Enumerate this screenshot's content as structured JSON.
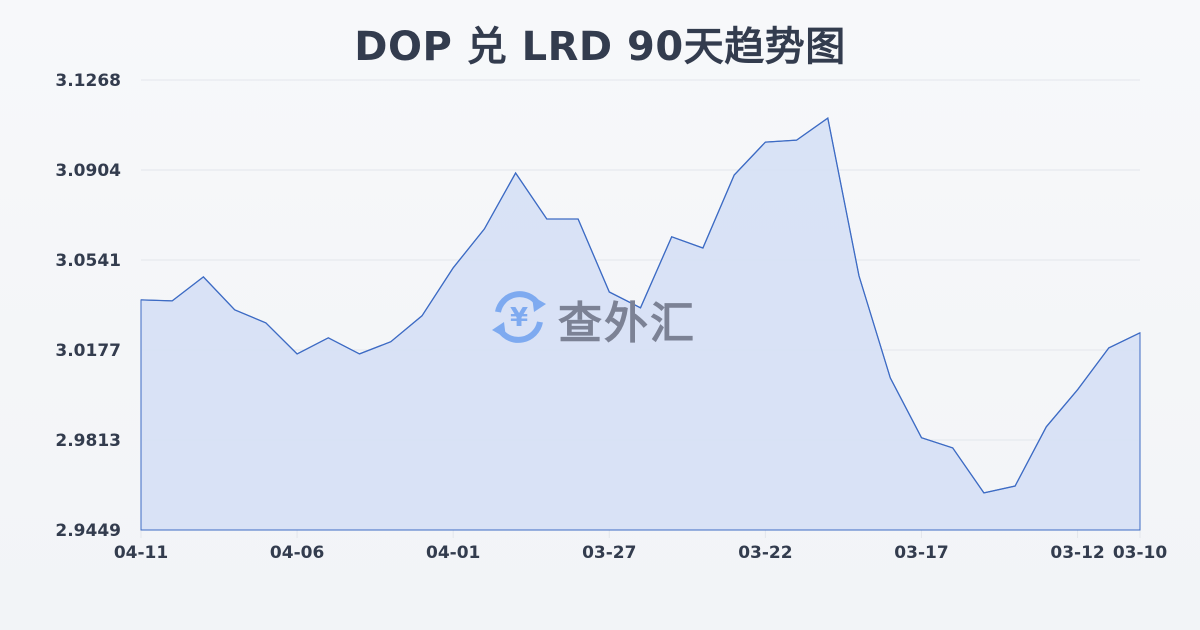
{
  "title": "DOP 兑 LRD 90天趋势图",
  "watermark": {
    "text": "查外汇",
    "icon": "yen-exchange-icon"
  },
  "colors": {
    "line": "#3d6bc4",
    "fill": "#d6e0f5",
    "grid": "#e3e6ec",
    "text": "#333c4e",
    "watermark_icon": "#7eaaf0",
    "watermark_text": "#7c8295"
  },
  "chart_data": {
    "type": "area",
    "title": "DOP 兑 LRD 90天趋势图",
    "xlabel": "",
    "ylabel": "",
    "ylim": [
      2.9449,
      3.1268
    ],
    "yticks": [
      "3.1268",
      "3.0904",
      "3.0541",
      "3.0177",
      "2.9813",
      "2.9449"
    ],
    "xticks": [
      "04-11",
      "04-06",
      "04-01",
      "03-27",
      "03-22",
      "03-17",
      "03-12",
      "03-10"
    ],
    "grid": true,
    "legend": "none",
    "x": [
      "04-11",
      "04-10",
      "04-09",
      "04-08",
      "04-07",
      "04-06",
      "04-05",
      "04-04",
      "04-03",
      "04-02",
      "04-01",
      "03-31",
      "03-30",
      "03-29",
      "03-28",
      "03-27",
      "03-26",
      "03-25",
      "03-24",
      "03-23",
      "03-22",
      "03-21",
      "03-20",
      "03-19",
      "03-18",
      "03-17",
      "03-16",
      "03-15",
      "03-14",
      "03-13",
      "03-12",
      "03-11",
      "03-10"
    ],
    "series": [
      {
        "name": "DOP/LRD",
        "values": [
          3.0379,
          3.0375,
          3.0472,
          3.0339,
          3.0286,
          3.0161,
          3.0226,
          3.0161,
          3.021,
          3.0315,
          3.0509,
          3.0666,
          3.0892,
          3.0706,
          3.0706,
          3.0411,
          3.0347,
          3.0634,
          3.0589,
          3.0884,
          3.1017,
          3.1025,
          3.1114,
          3.0476,
          3.0064,
          2.9822,
          2.9781,
          2.9599,
          2.9627,
          2.9866,
          3.0016,
          3.0185,
          3.0246
        ]
      }
    ]
  }
}
